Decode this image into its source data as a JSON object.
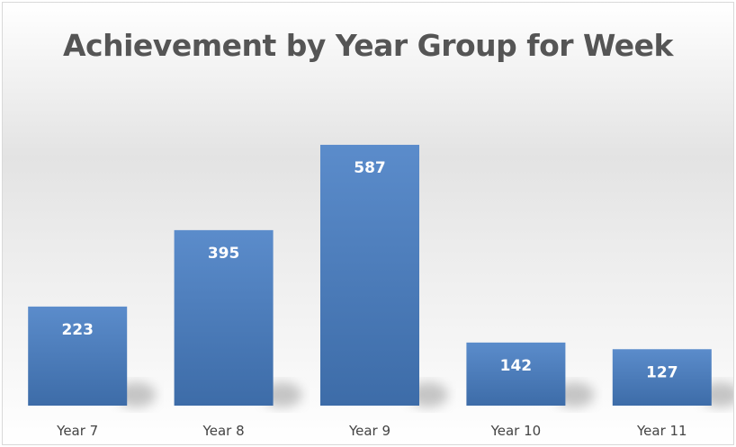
{
  "chart_data": {
    "type": "bar",
    "title": "Achievement by Year Group for Week",
    "categories": [
      "Year  7",
      "Year  8",
      "Year  9",
      "Year 10",
      "Year 11"
    ],
    "values": [
      223,
      395,
      587,
      142,
      127
    ],
    "xlabel": "",
    "ylabel": "",
    "ylim": [
      0,
      600
    ],
    "grid": false,
    "legend": "none",
    "colors": {
      "bar_top": "#5b8ccb",
      "bar_bottom": "#3d6ca8",
      "shadow": "#9a9a9a"
    }
  }
}
